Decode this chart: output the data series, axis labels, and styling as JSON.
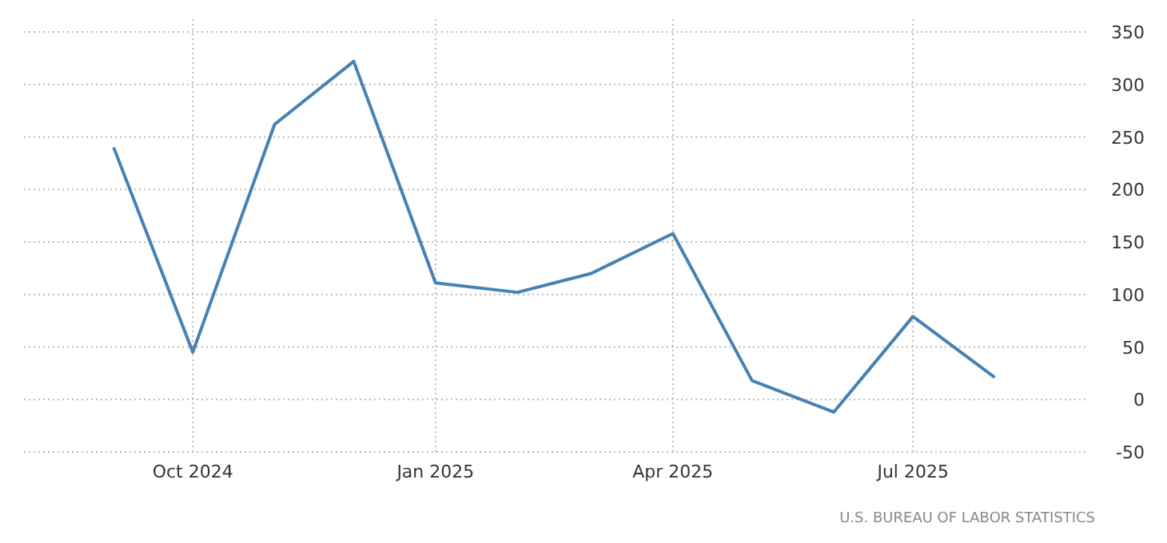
{
  "chart_data": {
    "type": "line",
    "x": [
      "2024-09",
      "2024-10",
      "2024-11",
      "2024-12",
      "2025-01",
      "2025-02",
      "2025-03",
      "2025-04",
      "2025-05",
      "2025-06",
      "2025-07",
      "2025-08"
    ],
    "series": [
      {
        "color": "#4682b4",
        "values": [
          240,
          45,
          262,
          322,
          111,
          102,
          120,
          158,
          18,
          -12,
          79,
          21
        ]
      }
    ],
    "xlim": [
      "2024-07-29",
      "2025-09-05"
    ],
    "xticks": [
      {
        "value": "2024-10",
        "label": "Oct 2024"
      },
      {
        "value": "2025-01",
        "label": "Jan 2025"
      },
      {
        "value": "2025-04",
        "label": "Apr 2025"
      },
      {
        "value": "2025-07",
        "label": "Jul 2025"
      }
    ],
    "ylim": [
      -50,
      350
    ],
    "yticks": [
      -50,
      0,
      50,
      100,
      150,
      200,
      250,
      300,
      350
    ],
    "grid": true,
    "marker": "none",
    "line_style": "solid",
    "annotations": [
      "U.S. BUREAU OF LABOR STATISTICS"
    ]
  }
}
